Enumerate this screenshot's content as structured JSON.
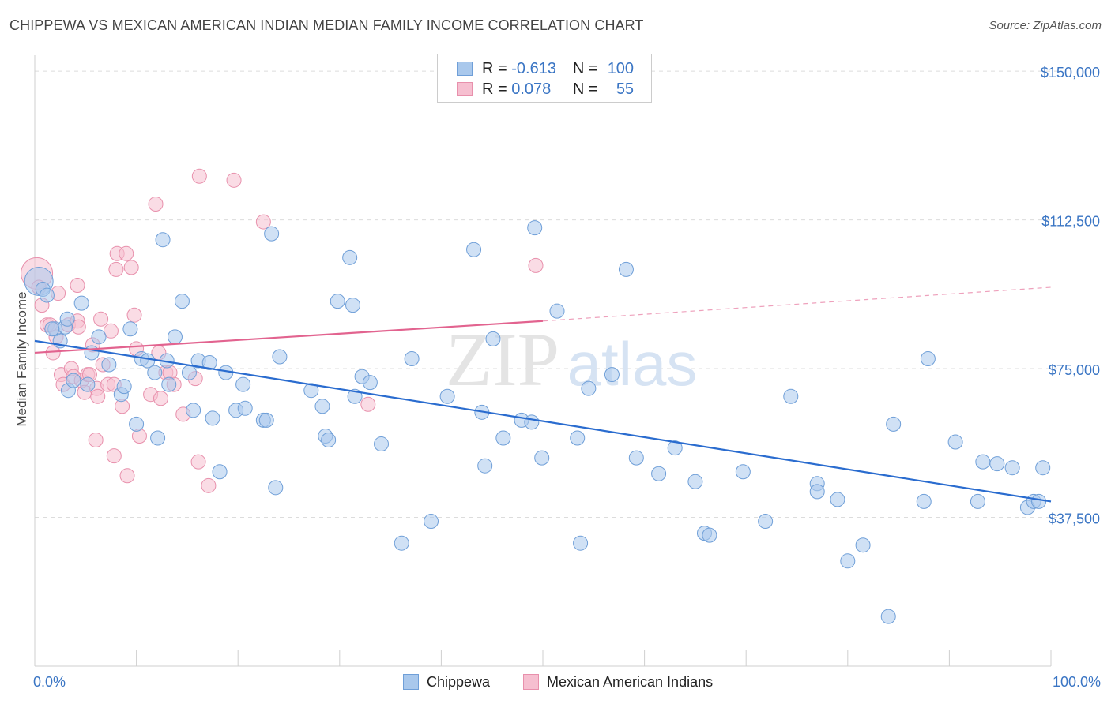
{
  "title": "CHIPPEWA VS MEXICAN AMERICAN INDIAN MEDIAN FAMILY INCOME CORRELATION CHART",
  "source": "Source: ZipAtlas.com",
  "watermark": {
    "zip": "ZIP",
    "atlas": "atlas"
  },
  "colors": {
    "blue_fill": "#a9c8ec",
    "blue_stroke": "#6f9fd8",
    "blue_line": "#2a6ccf",
    "pink_fill": "#f6bfd0",
    "pink_stroke": "#e890ac",
    "pink_line": "#e2638f",
    "axis_text": "#3a75c4",
    "grid": "#dcdcdc"
  },
  "legend": {
    "rows": [
      {
        "r_label": "R =",
        "r_value": "-0.613",
        "n_label": "N =",
        "n_value": "100"
      },
      {
        "r_label": "R =",
        "r_value": "0.078",
        "n_label": "N =",
        "n_value": "55"
      }
    ]
  },
  "bottom_legend": [
    "Chippewa",
    "Mexican American Indians"
  ],
  "chart_data": {
    "type": "scatter",
    "title": "CHIPPEWA VS MEXICAN AMERICAN INDIAN MEDIAN FAMILY INCOME CORRELATION CHART",
    "xlabel": "",
    "ylabel": "Median Family Income",
    "xlim": [
      0,
      100
    ],
    "ylim": [
      0,
      154000
    ],
    "x_tick_labels": [
      "0.0%",
      "100.0%"
    ],
    "y_ticks": [
      37500,
      75000,
      112500,
      150000
    ],
    "y_tick_labels": [
      "$37,500",
      "$75,000",
      "$112,500",
      "$150,000"
    ],
    "grid": true,
    "legend_position": "top-center",
    "series": [
      {
        "name": "Chippewa",
        "r": -0.613,
        "n": 100,
        "trend": {
          "x": [
            0,
            100
          ],
          "y": [
            82000,
            41500
          ]
        },
        "points": [
          [
            0.4,
            97000
          ],
          [
            0.8,
            95000
          ],
          [
            1.2,
            93500
          ],
          [
            2,
            85000
          ],
          [
            2.5,
            82000
          ],
          [
            3,
            85500
          ],
          [
            3.2,
            87500
          ],
          [
            3.3,
            69500
          ],
          [
            4.6,
            91500
          ],
          [
            3.8,
            72000
          ],
          [
            5.2,
            71000
          ],
          [
            5.6,
            79000
          ],
          [
            6.3,
            83000
          ],
          [
            7.3,
            76000
          ],
          [
            8.5,
            68500
          ],
          [
            8.8,
            70500
          ],
          [
            9.4,
            85000
          ],
          [
            10,
            61000
          ],
          [
            10.5,
            77500
          ],
          [
            11.1,
            77000
          ],
          [
            11.8,
            74000
          ],
          [
            12.1,
            57500
          ],
          [
            12.6,
            107500
          ],
          [
            13.2,
            71000
          ],
          [
            13.8,
            83000
          ],
          [
            14.5,
            92000
          ],
          [
            15.2,
            74000
          ],
          [
            15.6,
            64500
          ],
          [
            16.1,
            77000
          ],
          [
            17.2,
            76500
          ],
          [
            17.5,
            62500
          ],
          [
            18.2,
            49000
          ],
          [
            18.8,
            74000
          ],
          [
            19.8,
            64500
          ],
          [
            20.5,
            71000
          ],
          [
            22.5,
            62000
          ],
          [
            22.8,
            62000
          ],
          [
            23.3,
            109000
          ],
          [
            23.7,
            45000
          ],
          [
            24.1,
            78000
          ],
          [
            27.2,
            69500
          ],
          [
            28.3,
            65500
          ],
          [
            28.6,
            58000
          ],
          [
            28.9,
            57000
          ],
          [
            29.8,
            92000
          ],
          [
            31,
            103000
          ],
          [
            31.3,
            91000
          ],
          [
            31.5,
            68000
          ],
          [
            32.2,
            73000
          ],
          [
            33,
            71500
          ],
          [
            34.1,
            56000
          ],
          [
            36.1,
            31000
          ],
          [
            37.1,
            77500
          ],
          [
            39,
            36500
          ],
          [
            40.6,
            68000
          ],
          [
            43.2,
            105000
          ],
          [
            44,
            64000
          ],
          [
            44.3,
            50500
          ],
          [
            45.1,
            82500
          ],
          [
            46.1,
            57500
          ],
          [
            47.9,
            62000
          ],
          [
            48.9,
            61500
          ],
          [
            49.2,
            110500
          ],
          [
            49.9,
            52500
          ],
          [
            51.4,
            89500
          ],
          [
            53.4,
            57500
          ],
          [
            53.7,
            31000
          ],
          [
            54.5,
            70000
          ],
          [
            56.8,
            73500
          ],
          [
            58.2,
            100000
          ],
          [
            59.2,
            52500
          ],
          [
            61.4,
            48500
          ],
          [
            63,
            55000
          ],
          [
            65,
            46500
          ],
          [
            65.9,
            33500
          ],
          [
            66.4,
            33000
          ],
          [
            69.7,
            49000
          ],
          [
            71.9,
            36500
          ],
          [
            74.4,
            68000
          ],
          [
            77,
            46000
          ],
          [
            77,
            44000
          ],
          [
            79,
            42000
          ],
          [
            80,
            26500
          ],
          [
            81.5,
            30500
          ],
          [
            84,
            12500
          ],
          [
            84.5,
            61000
          ],
          [
            87.5,
            41500
          ],
          [
            87.9,
            77500
          ],
          [
            90.6,
            56500
          ],
          [
            92.8,
            41500
          ],
          [
            93.3,
            51500
          ],
          [
            94.7,
            51000
          ],
          [
            96.2,
            50000
          ],
          [
            97.7,
            40000
          ],
          [
            98.3,
            41500
          ],
          [
            98.8,
            41500
          ],
          [
            99.2,
            50000
          ],
          [
            1.7,
            85000
          ],
          [
            13,
            77000
          ],
          [
            20.7,
            65000
          ]
        ]
      },
      {
        "name": "Mexican American Indians",
        "r": 0.078,
        "n": 55,
        "trend": {
          "x": [
            0,
            50
          ],
          "y": [
            79000,
            87000
          ]
        },
        "trend_dashed": {
          "x": [
            50,
            100
          ],
          "y": [
            87000,
            95500
          ]
        },
        "points": [
          [
            0.2,
            99000
          ],
          [
            0.4,
            95500
          ],
          [
            0.7,
            91000
          ],
          [
            1.2,
            86000
          ],
          [
            1.5,
            86000
          ],
          [
            1.8,
            79000
          ],
          [
            2.1,
            83000
          ],
          [
            2.3,
            94000
          ],
          [
            2.6,
            73500
          ],
          [
            2.8,
            71000
          ],
          [
            3.3,
            86000
          ],
          [
            3.6,
            75000
          ],
          [
            3.8,
            73000
          ],
          [
            4.2,
            87000
          ],
          [
            4.2,
            96000
          ],
          [
            4.3,
            85500
          ],
          [
            4.6,
            72000
          ],
          [
            4.9,
            69000
          ],
          [
            5.2,
            73500
          ],
          [
            5.4,
            73500
          ],
          [
            5.7,
            81000
          ],
          [
            6,
            57000
          ],
          [
            6.1,
            70000
          ],
          [
            6.2,
            68000
          ],
          [
            6.5,
            87500
          ],
          [
            6.7,
            76000
          ],
          [
            7.2,
            71000
          ],
          [
            7.5,
            84500
          ],
          [
            7.8,
            71000
          ],
          [
            7.8,
            53000
          ],
          [
            8,
            100000
          ],
          [
            8.1,
            104000
          ],
          [
            8.6,
            65500
          ],
          [
            9,
            104000
          ],
          [
            9.1,
            48000
          ],
          [
            9.5,
            100500
          ],
          [
            9.8,
            88500
          ],
          [
            10,
            80000
          ],
          [
            10.3,
            58000
          ],
          [
            11.4,
            68500
          ],
          [
            11.9,
            116500
          ],
          [
            12.2,
            79000
          ],
          [
            12.4,
            67500
          ],
          [
            12.9,
            74000
          ],
          [
            13.3,
            74000
          ],
          [
            13.7,
            71000
          ],
          [
            14.6,
            63500
          ],
          [
            15.8,
            72500
          ],
          [
            16.1,
            51500
          ],
          [
            16.2,
            123500
          ],
          [
            17.1,
            45500
          ],
          [
            19.6,
            122500
          ],
          [
            22.5,
            112000
          ],
          [
            32.8,
            66000
          ],
          [
            49.3,
            101000
          ]
        ]
      }
    ]
  }
}
